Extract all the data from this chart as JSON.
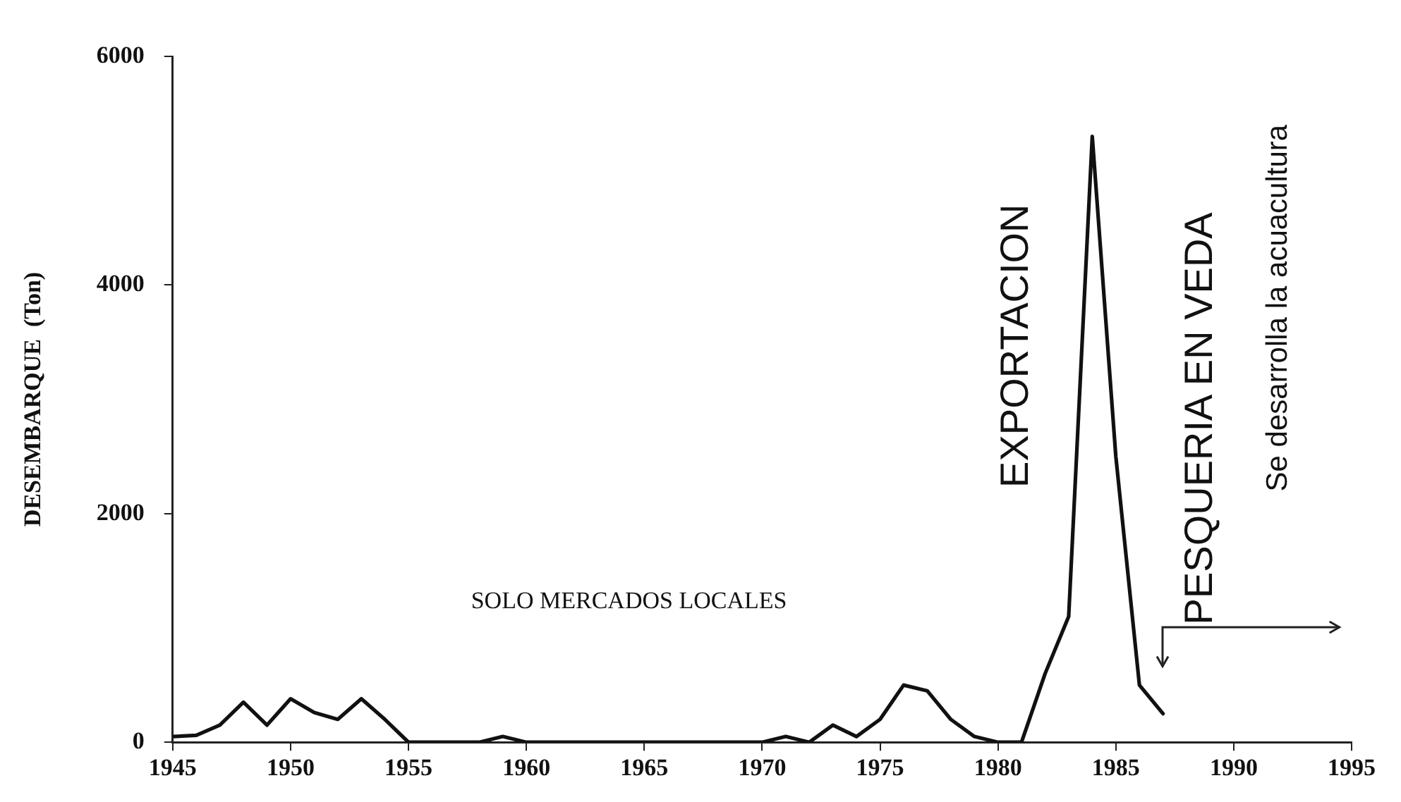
{
  "chart_data": {
    "type": "line",
    "ylabel": "DESEMBARQUE  (Ton)",
    "x": [
      1945,
      1946,
      1947,
      1948,
      1949,
      1950,
      1951,
      1952,
      1953,
      1954,
      1955,
      1956,
      1957,
      1958,
      1959,
      1960,
      1961,
      1962,
      1963,
      1964,
      1965,
      1966,
      1967,
      1968,
      1969,
      1970,
      1971,
      1972,
      1973,
      1974,
      1975,
      1976,
      1977,
      1978,
      1979,
      1980,
      1981,
      1982,
      1983,
      1984,
      1985,
      1986,
      1987
    ],
    "series": [
      {
        "color": "#111111",
        "values": [
          50,
          60,
          150,
          350,
          150,
          380,
          260,
          200,
          380,
          200,
          0,
          0,
          0,
          0,
          50,
          0,
          0,
          0,
          0,
          0,
          0,
          0,
          0,
          0,
          0,
          0,
          50,
          0,
          150,
          50,
          200,
          500,
          450,
          200,
          50,
          0,
          0,
          600,
          1100,
          5300,
          2500,
          500,
          250
        ]
      }
    ],
    "xlim": [
      1945,
      1995
    ],
    "xticks": [
      1945,
      1950,
      1955,
      1960,
      1965,
      1970,
      1975,
      1980,
      1985,
      1990,
      1995
    ],
    "ylim": [
      0,
      6000
    ],
    "yticks": [
      0,
      2000,
      4000,
      6000
    ],
    "grid": false,
    "legend": false,
    "marker": "none",
    "line_style": "solid",
    "annotations": [
      "SOLO MERCADOS LOCALES",
      "EXPORTACION",
      "PESQUERIA EN VEDA",
      "Se desarrolla la acuacultura"
    ]
  }
}
